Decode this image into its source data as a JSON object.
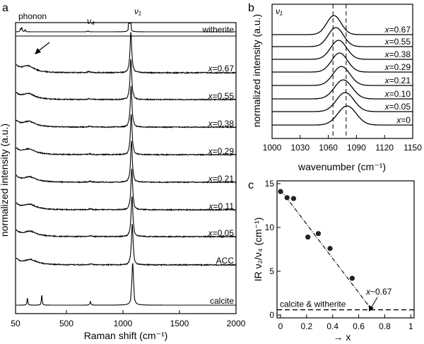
{
  "chart_data": [
    {
      "panel": "a",
      "type": "line",
      "xlabel": "Raman shift (cm⁻¹)",
      "ylabel": "normalized intensity (a.u.)",
      "xlim": [
        50,
        2000
      ],
      "xticks": [
        "50",
        "500",
        "1000",
        "1500",
        "2000"
      ],
      "grid": false,
      "annotations": [
        "phonon",
        "ν₄",
        "ν₁"
      ],
      "series": [
        {
          "name": "witherite",
          "peaks": [
            {
              "x": 95,
              "h": 0.45
            },
            {
              "x": 105,
              "h": 0.55
            },
            {
              "x": 135,
              "h": 0.3
            },
            {
              "x": 690,
              "h": 0.15
            },
            {
              "x": 1060,
              "h": 1.0
            }
          ]
        },
        {
          "name": "x=0.67",
          "peaks": [
            {
              "x": 160,
              "h": 0.42
            },
            {
              "x": 700,
              "h": 0.06
            },
            {
              "x": 1070,
              "h": 1.0
            }
          ]
        },
        {
          "name": "x=0.55",
          "peaks": [
            {
              "x": 165,
              "h": 0.4
            },
            {
              "x": 700,
              "h": 0.06
            },
            {
              "x": 1070,
              "h": 1.0
            }
          ]
        },
        {
          "name": "x=0.38",
          "peaks": [
            {
              "x": 170,
              "h": 0.38
            },
            {
              "x": 705,
              "h": 0.06
            },
            {
              "x": 1072,
              "h": 1.0
            }
          ]
        },
        {
          "name": "x=0.29",
          "peaks": [
            {
              "x": 170,
              "h": 0.38
            },
            {
              "x": 705,
              "h": 0.06
            },
            {
              "x": 1073,
              "h": 1.0
            }
          ]
        },
        {
          "name": "x=0.21",
          "peaks": [
            {
              "x": 175,
              "h": 0.36
            },
            {
              "x": 708,
              "h": 0.06
            },
            {
              "x": 1075,
              "h": 1.0
            }
          ]
        },
        {
          "name": "x=0.11",
          "peaks": [
            {
              "x": 175,
              "h": 0.36
            },
            {
              "x": 710,
              "h": 0.06
            },
            {
              "x": 1078,
              "h": 1.0
            }
          ]
        },
        {
          "name": "x=0.05",
          "peaks": [
            {
              "x": 178,
              "h": 0.36
            },
            {
              "x": 712,
              "h": 0.06
            },
            {
              "x": 1080,
              "h": 1.0
            }
          ]
        },
        {
          "name": "ACC",
          "peaks": [
            {
              "x": 180,
              "h": 0.36
            },
            {
              "x": 715,
              "h": 0.06
            },
            {
              "x": 1082,
              "h": 1.0
            }
          ]
        },
        {
          "name": "calcite",
          "peaks": [
            {
              "x": 155,
              "h": 0.25
            },
            {
              "x": 282,
              "h": 0.35
            },
            {
              "x": 712,
              "h": 0.12
            },
            {
              "x": 1086,
              "h": 1.0
            }
          ]
        }
      ]
    },
    {
      "panel": "b",
      "type": "line",
      "xlabel": "wavenumber (cm⁻¹)",
      "ylabel": "normalized intensity (a.u.)",
      "xlim": [
        1000,
        1150
      ],
      "xticks": [
        "1000",
        "1030",
        "1060",
        "1090",
        "1120",
        "1150"
      ],
      "grid": false,
      "annotation": "ν₁",
      "reference_lines_x": [
        1065,
        1079
      ],
      "series": [
        {
          "name": "x=0.67",
          "center": 1066,
          "fwhm": 18
        },
        {
          "name": "x=0.55",
          "center": 1068,
          "fwhm": 19
        },
        {
          "name": "x=0.38",
          "center": 1071,
          "fwhm": 20
        },
        {
          "name": "x=0.29",
          "center": 1072,
          "fwhm": 20
        },
        {
          "name": "x=0.21",
          "center": 1074,
          "fwhm": 21
        },
        {
          "name": "x=0.10",
          "center": 1076,
          "fwhm": 22
        },
        {
          "name": "x=0.05",
          "center": 1078,
          "fwhm": 22
        },
        {
          "name": "x=0",
          "center": 1080,
          "fwhm": 23
        }
      ]
    },
    {
      "panel": "c",
      "type": "scatter",
      "xlabel": "→ x",
      "ylabel": "IR ν₂/ν₄ (cm⁻¹)",
      "xlim": [
        0,
        1
      ],
      "ylim": [
        0,
        15
      ],
      "xticks": [
        "0",
        "0.2",
        "0.4",
        "0.6",
        "0.8",
        "1"
      ],
      "yticks": [
        "0",
        "5",
        "10",
        "15"
      ],
      "grid": false,
      "points": [
        {
          "x": 0.0,
          "y": 14.1
        },
        {
          "x": 0.05,
          "y": 13.4
        },
        {
          "x": 0.1,
          "y": 13.3
        },
        {
          "x": 0.21,
          "y": 8.9
        },
        {
          "x": 0.29,
          "y": 9.3
        },
        {
          "x": 0.38,
          "y": 7.6
        },
        {
          "x": 0.55,
          "y": 4.2
        }
      ],
      "fit_line": {
        "x": [
          0.0,
          0.7
        ],
        "y": [
          14.3,
          0.6
        ]
      },
      "baseline": {
        "y": 0.6,
        "label": "calcite & witherite"
      },
      "annotation": "x~0.67"
    }
  ]
}
